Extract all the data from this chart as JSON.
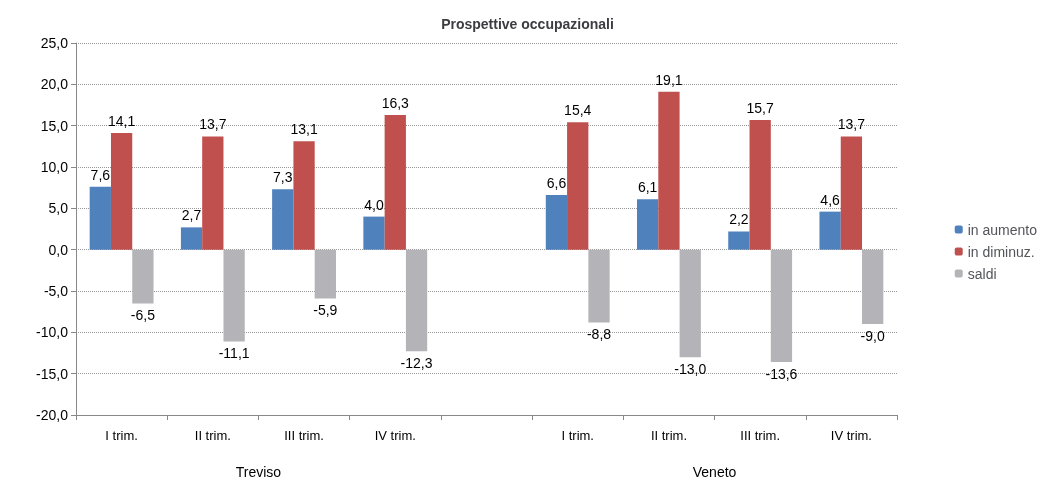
{
  "chart_data": {
    "type": "bar",
    "title": "Prospettive occupazionali",
    "categories": [
      "I trim.",
      "II trim.",
      "III trim.",
      "IV trim.",
      null,
      "I trim.",
      "II trim.",
      "III trim.",
      "IV trim."
    ],
    "annotations": [
      "Treviso",
      "Veneto"
    ],
    "series": [
      {
        "name": "in aumento",
        "color": "#4f81bd",
        "values": [
          7.6,
          2.7,
          7.3,
          4.0,
          null,
          6.6,
          6.1,
          2.2,
          4.6
        ],
        "value_labels": [
          "7,6",
          "2,7",
          "7,3",
          "4,0",
          null,
          "6,6",
          "6,1",
          "2,2",
          "4,6"
        ]
      },
      {
        "name": "in diminuz.",
        "color": "#c0504d",
        "values": [
          14.1,
          13.7,
          13.1,
          16.3,
          null,
          15.4,
          19.1,
          15.7,
          13.7
        ],
        "value_labels": [
          "14,1",
          "13,7",
          "13,1",
          "16,3",
          null,
          "15,4",
          "19,1",
          "15,7",
          "13,7"
        ]
      },
      {
        "name": "saldi",
        "color": "#b4b4b8",
        "values": [
          -6.5,
          -11.1,
          -5.9,
          -12.3,
          null,
          -8.8,
          -13.0,
          -13.6,
          -9.0
        ],
        "value_labels": [
          "-6,5",
          "-11,1",
          "-5,9",
          "-12,3",
          null,
          "-8,8",
          "-13,0",
          "-13,6",
          "-9,0"
        ]
      }
    ],
    "ylim": [
      -20,
      25
    ],
    "yticks": [
      {
        "value": -20,
        "label": "-20,0"
      },
      {
        "value": -15,
        "label": "-15,0"
      },
      {
        "value": -10,
        "label": "-10,0"
      },
      {
        "value": -5,
        "label": "-5,0"
      },
      {
        "value": 0,
        "label": "0,0"
      },
      {
        "value": 5,
        "label": "5,0"
      },
      {
        "value": 10,
        "label": "10,0"
      },
      {
        "value": 15,
        "label": "15,0"
      },
      {
        "value": 20,
        "label": "20,0"
      },
      {
        "value": 25,
        "label": "25,0"
      }
    ],
    "grid": "y",
    "legend": "right"
  }
}
